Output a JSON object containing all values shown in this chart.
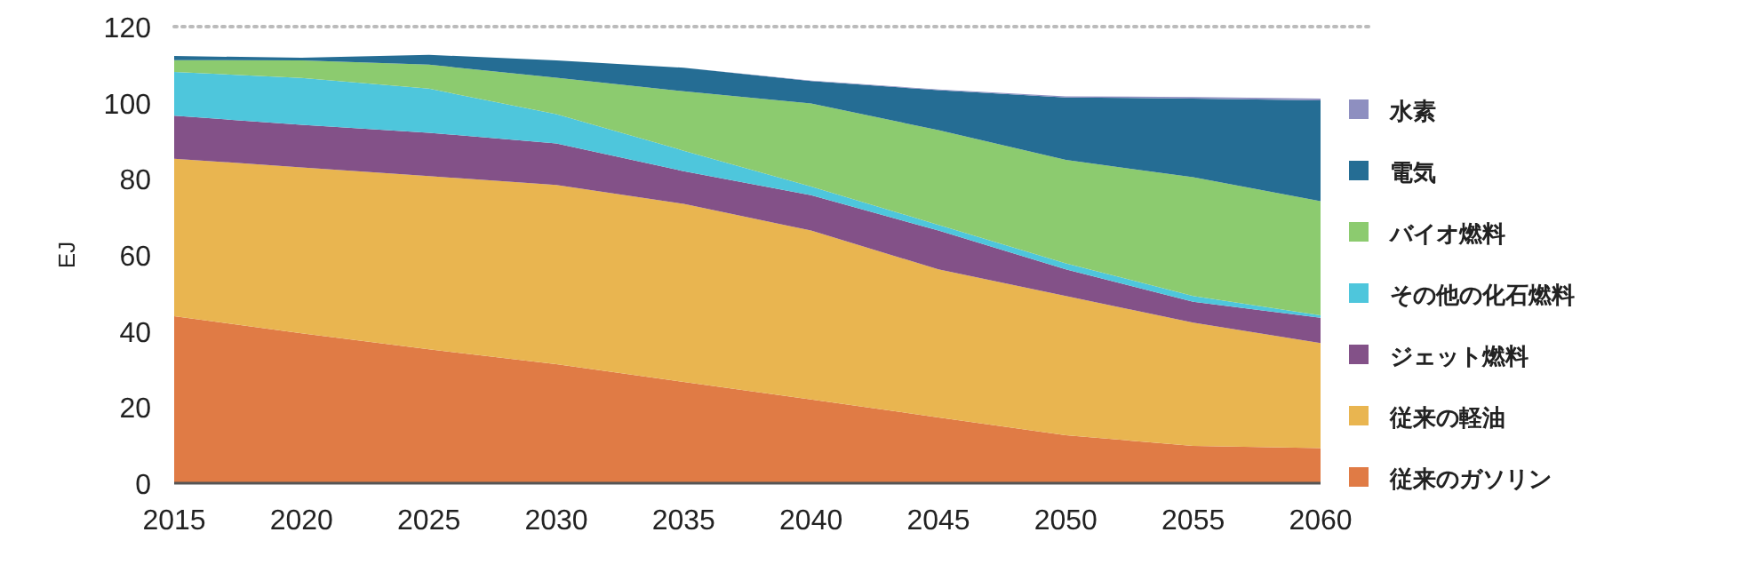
{
  "chart_data": {
    "type": "area",
    "stacked": true,
    "ylabel": "EJ",
    "x": [
      2015,
      2020,
      2025,
      2030,
      2035,
      2040,
      2045,
      2050,
      2055,
      2060
    ],
    "xlim": [
      2015,
      2060
    ],
    "xticks": [
      2015,
      2020,
      2025,
      2030,
      2035,
      2040,
      2045,
      2050,
      2055,
      2060
    ],
    "ylim": [
      0,
      120
    ],
    "yticks": [
      0,
      20,
      40,
      60,
      80,
      100,
      120
    ],
    "grid": false,
    "legend": "right",
    "ref_lines": [
      {
        "axis": "y",
        "value": 120,
        "color": "#bbbbbb",
        "line_style": "dotted"
      }
    ],
    "series": [
      {
        "name": "従来のガソリン",
        "color": "#e07b45",
        "values": [
          43.9,
          39.4,
          35.2,
          31.3,
          26.6,
          22.0,
          17.3,
          12.6,
          9.8,
          9.2
        ]
      },
      {
        "name": "従来の軽油",
        "color": "#e9b550",
        "values": [
          41.4,
          43.6,
          45.5,
          47.1,
          46.8,
          44.4,
          38.9,
          36.6,
          32.4,
          27.6
        ]
      },
      {
        "name": "ジェット燃料",
        "color": "#835188",
        "values": [
          11.3,
          11.2,
          11.4,
          10.9,
          8.6,
          9.3,
          10.2,
          7.0,
          5.5,
          6.7
        ]
      },
      {
        "name": "その他の化石燃料",
        "color": "#4ec6dc",
        "values": [
          11.5,
          12.3,
          11.6,
          7.7,
          5.4,
          2.3,
          1.5,
          1.6,
          1.5,
          0.6
        ]
      },
      {
        "name": "バイオ燃料",
        "color": "#8ccb6f",
        "values": [
          3.1,
          4.6,
          6.3,
          9.6,
          15.6,
          21.8,
          24.9,
          27.2,
          31.2,
          30.0
        ]
      },
      {
        "name": "電気",
        "color": "#256d94",
        "values": [
          1.1,
          0.7,
          2.6,
          4.5,
          6.2,
          5.9,
          10.5,
          16.4,
          20.7,
          26.5
        ]
      },
      {
        "name": "水素",
        "color": "#8e8fc0",
        "values": [
          0,
          0,
          0,
          0,
          0,
          0.1,
          0.2,
          0.3,
          0.4,
          0.5
        ]
      }
    ]
  }
}
